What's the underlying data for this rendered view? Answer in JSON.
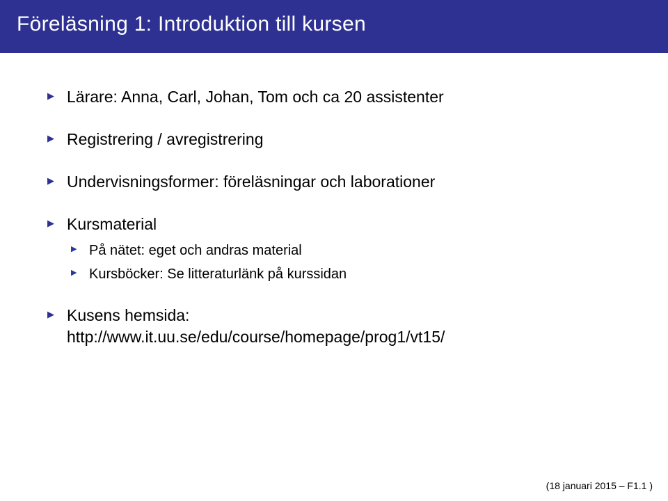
{
  "colors": {
    "header_bg": "#2e3192",
    "header_text": "#ffffff",
    "body_bg": "#ffffff",
    "bullet_color": "#2e3192",
    "text_color": "#000000"
  },
  "typography": {
    "title_fontsize": 30,
    "body_fontsize": 23,
    "sub_fontsize": 20,
    "footer_fontsize": 14,
    "font_weight": 300
  },
  "header": {
    "title": "Föreläsning 1: Introduktion till kursen"
  },
  "bullets": [
    {
      "text": "Lärare: Anna, Carl, Johan, Tom och ca 20 assistenter"
    },
    {
      "text": "Registrering / avregistrering"
    },
    {
      "text": "Undervisningsformer: föreläsningar och laborationer"
    },
    {
      "text": "Kursmaterial",
      "sub": [
        {
          "text": "På nätet: eget och andras material"
        },
        {
          "text": "Kursböcker: Se litteraturlänk på kurssidan"
        }
      ]
    },
    {
      "text": "Kusens hemsida:",
      "link": "http://www.it.uu.se/edu/course/homepage/prog1/vt15/"
    }
  ],
  "footer": {
    "text": "(18 januari 2015 – F1.1 )"
  }
}
